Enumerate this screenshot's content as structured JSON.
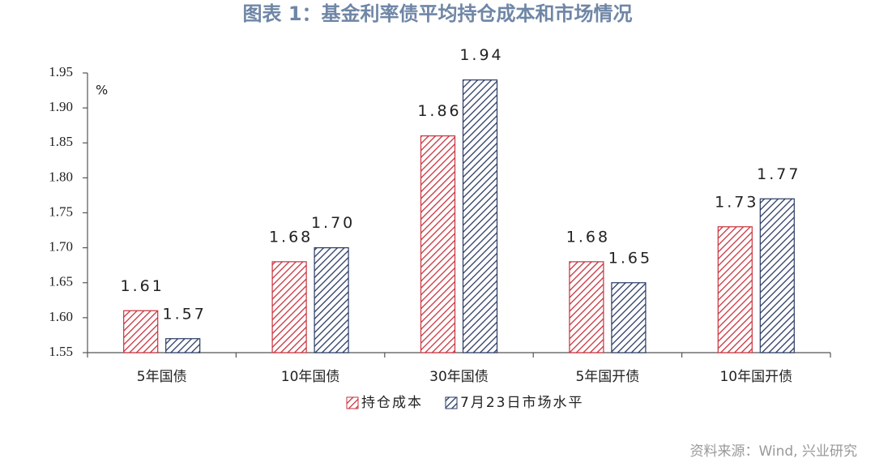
{
  "chart_data": {
    "type": "bar",
    "title": "图表 1：基金利率债平均持仓成本和市场情况",
    "unit": "%",
    "categories": [
      "5年国债",
      "10年国债",
      "30年国债",
      "5年国开债",
      "10年国开债"
    ],
    "series": [
      {
        "name": "持仓成本",
        "color": "#c8323c",
        "values": [
          1.61,
          1.68,
          1.86,
          1.68,
          1.73
        ],
        "value_labels": [
          "1.61",
          "1.68",
          "1.86",
          "1.68",
          "1.73"
        ]
      },
      {
        "name": "7月23日市场水平",
        "color": "#2a3a64",
        "values": [
          1.57,
          1.7,
          1.94,
          1.65,
          1.77
        ],
        "value_labels": [
          "1.57",
          "1.70",
          "1.94",
          "1.65",
          "1.77"
        ]
      }
    ],
    "ylim": [
      1.55,
      1.95
    ],
    "yticks": [
      1.55,
      {
        "value": 1.6,
        "label": "1.60"
      },
      1.65,
      {
        "value": 1.7,
        "label": "1.70"
      },
      1.75,
      {
        "value": 1.8,
        "label": "1.80"
      },
      1.85,
      {
        "value": 1.9,
        "label": "1.90"
      },
      1.95
    ],
    "grid": false,
    "legend": "bottom",
    "source": "资料来源：Wind, 兴业研究"
  }
}
